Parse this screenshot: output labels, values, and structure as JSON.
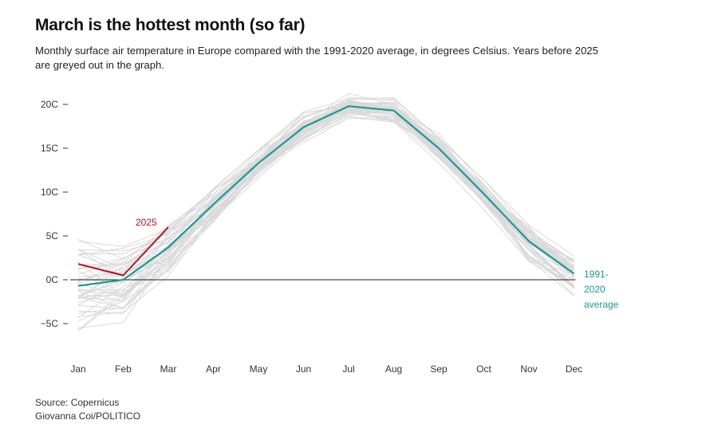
{
  "header": {
    "title": "March is the hottest month (so far)",
    "subtitle": "Monthly surface air temperature in Europe compared with the 1991-2020 average, in degrees Celsius. Years before 2025 are greyed out in the graph."
  },
  "footer": {
    "source": "Source: Copernicus",
    "credit": "Giovanna Coi/POLITICO"
  },
  "colors": {
    "highlight": "#b5121b",
    "average": "#1a9a92",
    "history": "#d9d9d9",
    "zero_line": "#222222"
  },
  "chart_data": {
    "type": "line",
    "title": "March is the hottest month (so far)",
    "xlabel": "",
    "ylabel": "",
    "categories": [
      "Jan",
      "Feb",
      "Mar",
      "Apr",
      "May",
      "Jun",
      "Jul",
      "Aug",
      "Sep",
      "Oct",
      "Nov",
      "Dec"
    ],
    "y_ticks": [
      20,
      15,
      10,
      5,
      0,
      -5
    ],
    "y_tick_labels": [
      "20C",
      "15C",
      "10C",
      "5C",
      "0C",
      "−5C"
    ],
    "ylim": [
      -9,
      21.5
    ],
    "grid": false,
    "series": [
      {
        "name": "2025",
        "values": [
          1.8,
          0.5,
          6.0,
          null,
          null,
          null,
          null,
          null,
          null,
          null,
          null,
          null
        ]
      },
      {
        "name": "1991-2020 average",
        "values": [
          -0.7,
          0.0,
          3.7,
          8.6,
          13.3,
          17.4,
          19.8,
          19.3,
          15.0,
          9.8,
          4.4,
          0.7
        ]
      }
    ],
    "annotations": {
      "series_2025_label": "2025",
      "average_label_lines": [
        "1991-",
        "2020",
        "average"
      ]
    },
    "history_envelope_note_visible": false
  }
}
